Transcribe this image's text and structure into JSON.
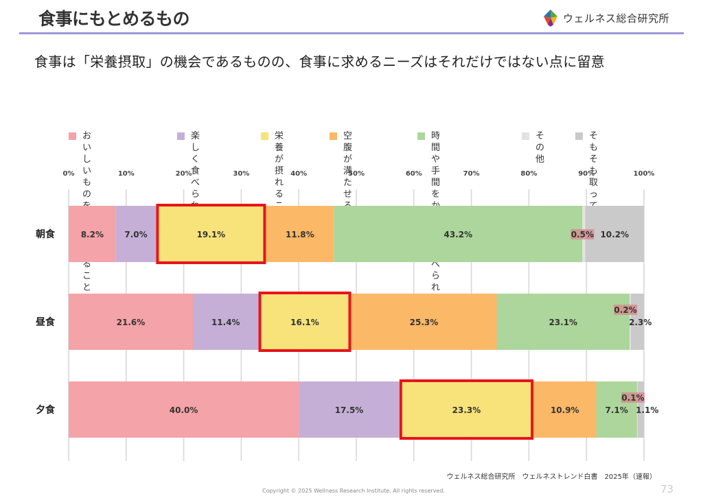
{
  "header": {
    "title": "食事にもとめるもの",
    "logo_text": "ウェルネス総合研究所"
  },
  "subtitle": "食事は「栄養摂取」の機会であるものの、食事に求めるニーズはそれだけではない点に留意",
  "footer": {
    "source": "ウェルネス総合研究所　ウェルネストレンド白書　2025年（速報）",
    "copyright": "Copyright © 2025 Wellness Research Institute. All rights reserved.",
    "page_number": "73"
  },
  "colors": {
    "title_rule": "#9c98d8",
    "highlight_box": "#e8141b"
  },
  "chart_data": {
    "type": "bar",
    "orientation": "horizontal",
    "stacked": true,
    "categories": [
      "朝食",
      "昼食",
      "夕食"
    ],
    "series": [
      {
        "name": "おいしいものを\n食べられること",
        "values": [
          8.2,
          21.6,
          40.0
        ],
        "color": "#f4a3a8"
      },
      {
        "name": "楽しく食べ\nられること",
        "values": [
          7.0,
          11.4,
          17.5
        ],
        "color": "#c5afd6"
      },
      {
        "name": "栄養が\n摂れること",
        "values": [
          19.1,
          16.1,
          23.3
        ],
        "color": "#f7e37a"
      },
      {
        "name": "空腹が\n満たせること",
        "values": [
          11.8,
          25.3,
          10.9
        ],
        "color": "#fbb867"
      },
      {
        "name": "時間や手間を\nかけずに\n食べられること",
        "values": [
          43.2,
          23.1,
          7.1
        ],
        "color": "#acd69b"
      },
      {
        "name": "その他",
        "values": [
          0.5,
          0.2,
          0.1
        ],
        "color": "#e2e2e2"
      },
      {
        "name": "そもそも\n取っていない",
        "values": [
          10.2,
          2.3,
          1.1
        ],
        "color": "#cacaca"
      }
    ],
    "data_labels": [
      [
        "8.2%",
        "7.0%",
        "19.1%",
        "11.8%",
        "43.2%",
        "0.5%",
        "10.2%"
      ],
      [
        "21.6%",
        "11.4%",
        "16.1%",
        "25.3%",
        "23.1%",
        "0.2%",
        "2.3%"
      ],
      [
        "40.0%",
        "17.5%",
        "23.3%",
        "10.9%",
        "7.1%",
        "0.1%",
        "1.1%"
      ]
    ],
    "x_ticks": [
      "0%",
      "10%",
      "20%",
      "30%",
      "40%",
      "50%",
      "60%",
      "70%",
      "80%",
      "90%",
      "100%"
    ],
    "xlim": [
      0,
      100
    ],
    "grid": true,
    "legend_position": "top",
    "highlighted_series": "栄養が\n摂れること"
  }
}
